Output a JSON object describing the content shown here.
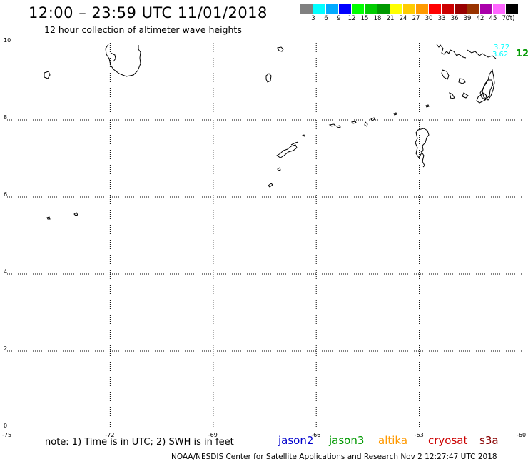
{
  "header": {
    "title": "12:00 – 23:59 UTC 11/01/2018",
    "subtitle": "12 hour collection of altimeter wave heights"
  },
  "legend": {
    "colors": [
      "#808080",
      "#00ffff",
      "#00aaff",
      "#0000ff",
      "#00ff00",
      "#00cc00",
      "#009900",
      "#ffff00",
      "#ffcc00",
      "#ff9900",
      "#ff0000",
      "#cc0000",
      "#990000",
      "#993300",
      "#aa00aa",
      "#ff66ff",
      "#000000"
    ],
    "labels": [
      "3",
      "6",
      "9",
      "12",
      "15",
      "18",
      "21",
      "24",
      "27",
      "30",
      "33",
      "36",
      "39",
      "42",
      "45",
      "70",
      "(ft)"
    ]
  },
  "map": {
    "lon_range": [
      -75,
      -60
    ],
    "lat_range": [
      0,
      10
    ],
    "lon_ticks": [
      "-75",
      "-72",
      "-69",
      "-66",
      "-63",
      "-60"
    ],
    "lat_ticks": [
      "0",
      "2",
      "4",
      "6",
      "8",
      "10"
    ],
    "coastline_color": "#000000",
    "grid_style": "dotted"
  },
  "measurements": [
    {
      "text": "3.72",
      "color": "#00ffff"
    },
    {
      "text": "3.62",
      "color": "#00ffff"
    },
    {
      "text": "12",
      "color": "#009900"
    }
  ],
  "note": "note: 1) Time is in UTC; 2) SWH is in feet",
  "satellites": [
    {
      "name": "jason2",
      "color": "#0000cc"
    },
    {
      "name": "jason3",
      "color": "#009900"
    },
    {
      "name": "altika",
      "color": "#ff9900"
    },
    {
      "name": "cryosat",
      "color": "#cc0000"
    },
    {
      "name": "s3a",
      "color": "#880000"
    }
  ],
  "footer": "NOAA/NESDIS Center for Satellite Applications and Research    Nov  2 12:27:47 UTC 2018"
}
